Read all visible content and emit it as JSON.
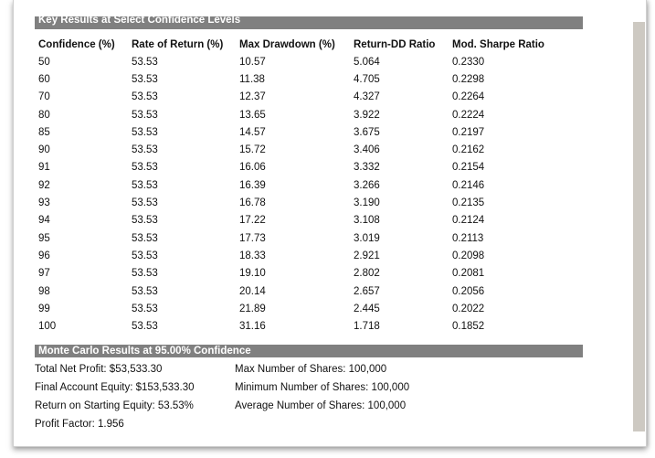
{
  "key_results": {
    "header": "Key Results at Select Confidence Levels",
    "columns": [
      "Confidence (%)",
      "Rate of Return (%)",
      "Max Drawdown (%)",
      "Return-DD Ratio",
      "Mod. Sharpe Ratio"
    ],
    "rows": [
      [
        "50",
        "53.53",
        "10.57",
        "5.064",
        "0.2330"
      ],
      [
        "60",
        "53.53",
        "11.38",
        "4.705",
        "0.2298"
      ],
      [
        "70",
        "53.53",
        "12.37",
        "4.327",
        "0.2264"
      ],
      [
        "80",
        "53.53",
        "13.65",
        "3.922",
        "0.2224"
      ],
      [
        "85",
        "53.53",
        "14.57",
        "3.675",
        "0.2197"
      ],
      [
        "90",
        "53.53",
        "15.72",
        "3.406",
        "0.2162"
      ],
      [
        "91",
        "53.53",
        "16.06",
        "3.332",
        "0.2154"
      ],
      [
        "92",
        "53.53",
        "16.39",
        "3.266",
        "0.2146"
      ],
      [
        "93",
        "53.53",
        "16.78",
        "3.190",
        "0.2135"
      ],
      [
        "94",
        "53.53",
        "17.22",
        "3.108",
        "0.2124"
      ],
      [
        "95",
        "53.53",
        "17.73",
        "3.019",
        "0.2113"
      ],
      [
        "96",
        "53.53",
        "18.33",
        "2.921",
        "0.2098"
      ],
      [
        "97",
        "53.53",
        "19.10",
        "2.802",
        "0.2081"
      ],
      [
        "98",
        "53.53",
        "20.14",
        "2.657",
        "0.2056"
      ],
      [
        "99",
        "53.53",
        "21.89",
        "2.445",
        "0.2022"
      ],
      [
        "100",
        "53.53",
        "31.16",
        "1.718",
        "0.1852"
      ]
    ]
  },
  "monte_carlo": {
    "header": "Monte Carlo Results at 95.00% Confidence",
    "left": [
      "Total Net Profit: $53,533.30",
      "Final Account Equity: $153,533.30",
      "Return on Starting Equity: 53.53%",
      "Profit Factor: 1.956"
    ],
    "right": [
      "Max Number of Shares: 100,000",
      "Minimum Number of Shares: 100,000",
      "Average Number of Shares: 100,000"
    ]
  },
  "colors": {
    "header_bg": "#808080",
    "scrollbar": "#cdc9c2"
  }
}
